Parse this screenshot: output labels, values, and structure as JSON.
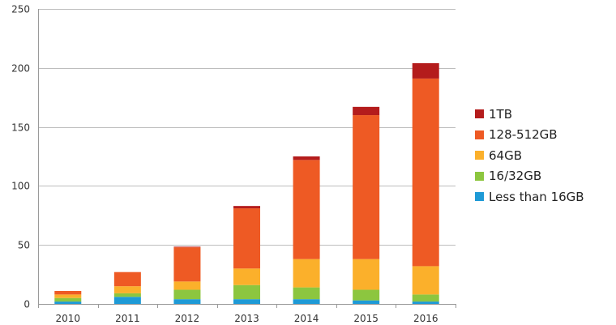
{
  "chart_data": {
    "type": "bar",
    "stacked": true,
    "categories": [
      "2010",
      "2011",
      "2012",
      "2013",
      "2014",
      "2015",
      "2016"
    ],
    "ylim": [
      0,
      250
    ],
    "yticks": [
      "0",
      "50",
      "100",
      "150",
      "200",
      "250"
    ],
    "grid": true,
    "legend_position": "right",
    "series": [
      {
        "name": "Less than 16GB",
        "color": "#1e9ad6",
        "values": [
          2,
          6,
          4,
          4,
          4,
          3,
          2
        ]
      },
      {
        "name": "16/32GB",
        "color": "#8cc63f",
        "values": [
          3,
          3,
          8,
          12,
          10,
          9,
          6
        ]
      },
      {
        "name": "64GB",
        "color": "#fbb02b",
        "values": [
          3,
          6,
          7,
          14,
          24,
          26,
          24
        ]
      },
      {
        "name": "128-512GB",
        "color": "#ee5a24",
        "values": [
          3,
          12,
          29,
          51,
          84,
          122,
          159
        ]
      },
      {
        "name": "1TB",
        "color": "#b41c1c",
        "values": [
          0,
          0,
          0.5,
          2,
          3,
          7,
          13
        ]
      }
    ]
  }
}
